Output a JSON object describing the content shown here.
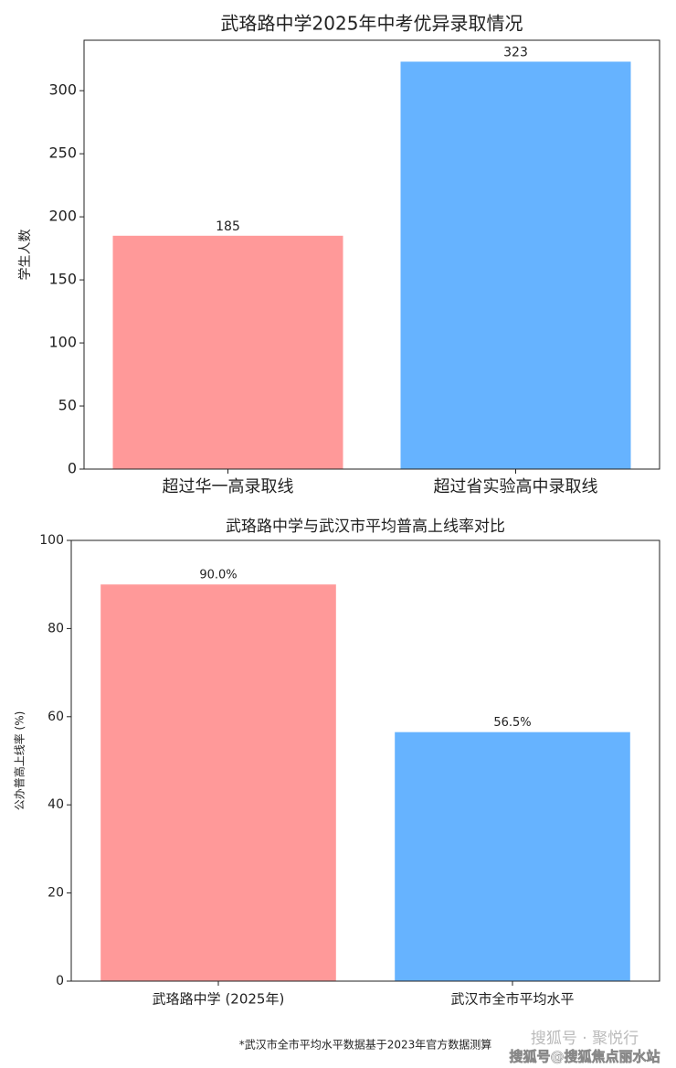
{
  "chart_data": [
    {
      "type": "bar",
      "title": "武珞路中学2025年中考优异录取情况",
      "ylabel": "学生人数",
      "categories": [
        "超过华一高录取线",
        "超过省实验高中录取线"
      ],
      "values": [
        185,
        323
      ],
      "colors": [
        "#ff9999",
        "#66b3ff"
      ],
      "ylim": [
        0,
        340
      ],
      "yticks": [
        0,
        50,
        100,
        150,
        200,
        250,
        300
      ]
    },
    {
      "type": "bar",
      "title": "武珞路中学与武汉市平均普高上线率对比",
      "ylabel": "公办普高上线率 (%)",
      "categories": [
        "武珞路中学 (2025年)",
        "武汉市全市平均水平"
      ],
      "values": [
        90.0,
        56.5
      ],
      "value_labels": [
        "90.0%",
        "56.5%"
      ],
      "colors": [
        "#ff9999",
        "#66b3ff"
      ],
      "ylim": [
        0,
        100
      ],
      "yticks": [
        0,
        20,
        40,
        60,
        80,
        100
      ]
    }
  ],
  "footnote": "*武汉市全市平均水平数据基于2023年官方数据测算",
  "watermark": [
    "搜狐号 · 聚悦行",
    "搜狐号@搜狐焦点丽水站"
  ]
}
